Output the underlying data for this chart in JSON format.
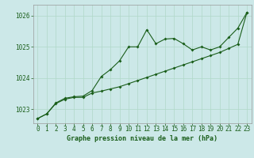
{
  "title": "Graphe pression niveau de la mer (hPa)",
  "background_color": "#cce8e8",
  "grid_color": "#b0d8c8",
  "line_color": "#1a5e1a",
  "spine_color": "#999999",
  "xlim": [
    -0.5,
    23.5
  ],
  "ylim": [
    1022.55,
    1026.35
  ],
  "yticks": [
    1023,
    1024,
    1025,
    1026
  ],
  "xticks": [
    0,
    1,
    2,
    3,
    4,
    5,
    6,
    7,
    8,
    9,
    10,
    11,
    12,
    13,
    14,
    15,
    16,
    17,
    18,
    19,
    20,
    21,
    22,
    23
  ],
  "series1_x": [
    0,
    1,
    2,
    3,
    4,
    5,
    6,
    7,
    8,
    9,
    10,
    11,
    12,
    13,
    14,
    15,
    16,
    17,
    18,
    19,
    20,
    21,
    22,
    23
  ],
  "series1_y": [
    1022.7,
    1022.85,
    1023.2,
    1023.35,
    1023.4,
    1023.42,
    1023.6,
    1024.05,
    1024.27,
    1024.55,
    1025.0,
    1025.0,
    1025.55,
    1025.1,
    1025.25,
    1025.27,
    1025.1,
    1024.9,
    1025.0,
    1024.9,
    1025.0,
    1025.3,
    1025.6,
    1026.1
  ],
  "series2_x": [
    0,
    1,
    2,
    3,
    4,
    5,
    6,
    7,
    8,
    9,
    10,
    11,
    12,
    13,
    14,
    15,
    16,
    17,
    18,
    19,
    20,
    21,
    22,
    23
  ],
  "series2_y": [
    1022.7,
    1022.85,
    1023.18,
    1023.32,
    1023.38,
    1023.38,
    1023.52,
    1023.58,
    1023.65,
    1023.72,
    1023.82,
    1023.92,
    1024.02,
    1024.12,
    1024.22,
    1024.32,
    1024.42,
    1024.52,
    1024.62,
    1024.72,
    1024.82,
    1024.95,
    1025.08,
    1026.1
  ],
  "tick_fontsize": 5.5,
  "xlabel_fontsize": 6.0,
  "figsize": [
    3.2,
    2.0
  ],
  "dpi": 100
}
